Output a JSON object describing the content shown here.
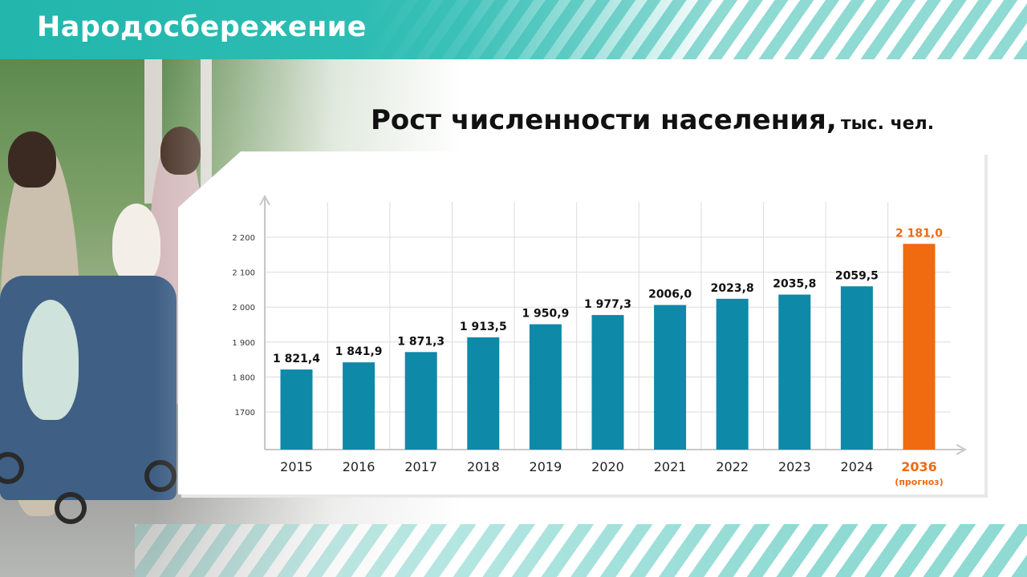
{
  "header": {
    "brand": "Народосбережение"
  },
  "colors": {
    "accent": "#2dbcb3",
    "bar": "#0e89a8",
    "forecast": "#f06a0f",
    "axis": "#c8c8c8"
  },
  "chart_data": {
    "type": "bar",
    "title": "Рост численности населения,",
    "unit": "тыс. чел.",
    "xlabel": "",
    "ylabel": "",
    "ylim": [
      1600,
      2300
    ],
    "yticks": [
      "2 200",
      "2 100",
      "2 000",
      "1 900",
      "1 800",
      "1700"
    ],
    "ytick_values": [
      2200,
      2100,
      2000,
      1900,
      1800,
      1700
    ],
    "grid": true,
    "categories": [
      "2015",
      "2016",
      "2017",
      "2018",
      "2019",
      "2020",
      "2021",
      "2022",
      "2023",
      "2024",
      "2036"
    ],
    "category_notes": [
      "",
      "",
      "",
      "",
      "",
      "",
      "",
      "",
      "",
      "",
      "(прогноз)"
    ],
    "values": [
      1821.4,
      1841.9,
      1871.3,
      1913.5,
      1950.9,
      1977.3,
      2006.0,
      2023.8,
      2035.8,
      2059.5,
      2181.0
    ],
    "value_labels": [
      "1 821,4",
      "1 841,9",
      "1 871,3",
      "1 913,5",
      "1 950,9",
      "1 977,3",
      "2006,0",
      "2023,8",
      "2035,8",
      "2059,5",
      "2 181,0"
    ],
    "highlight_index": 10
  }
}
